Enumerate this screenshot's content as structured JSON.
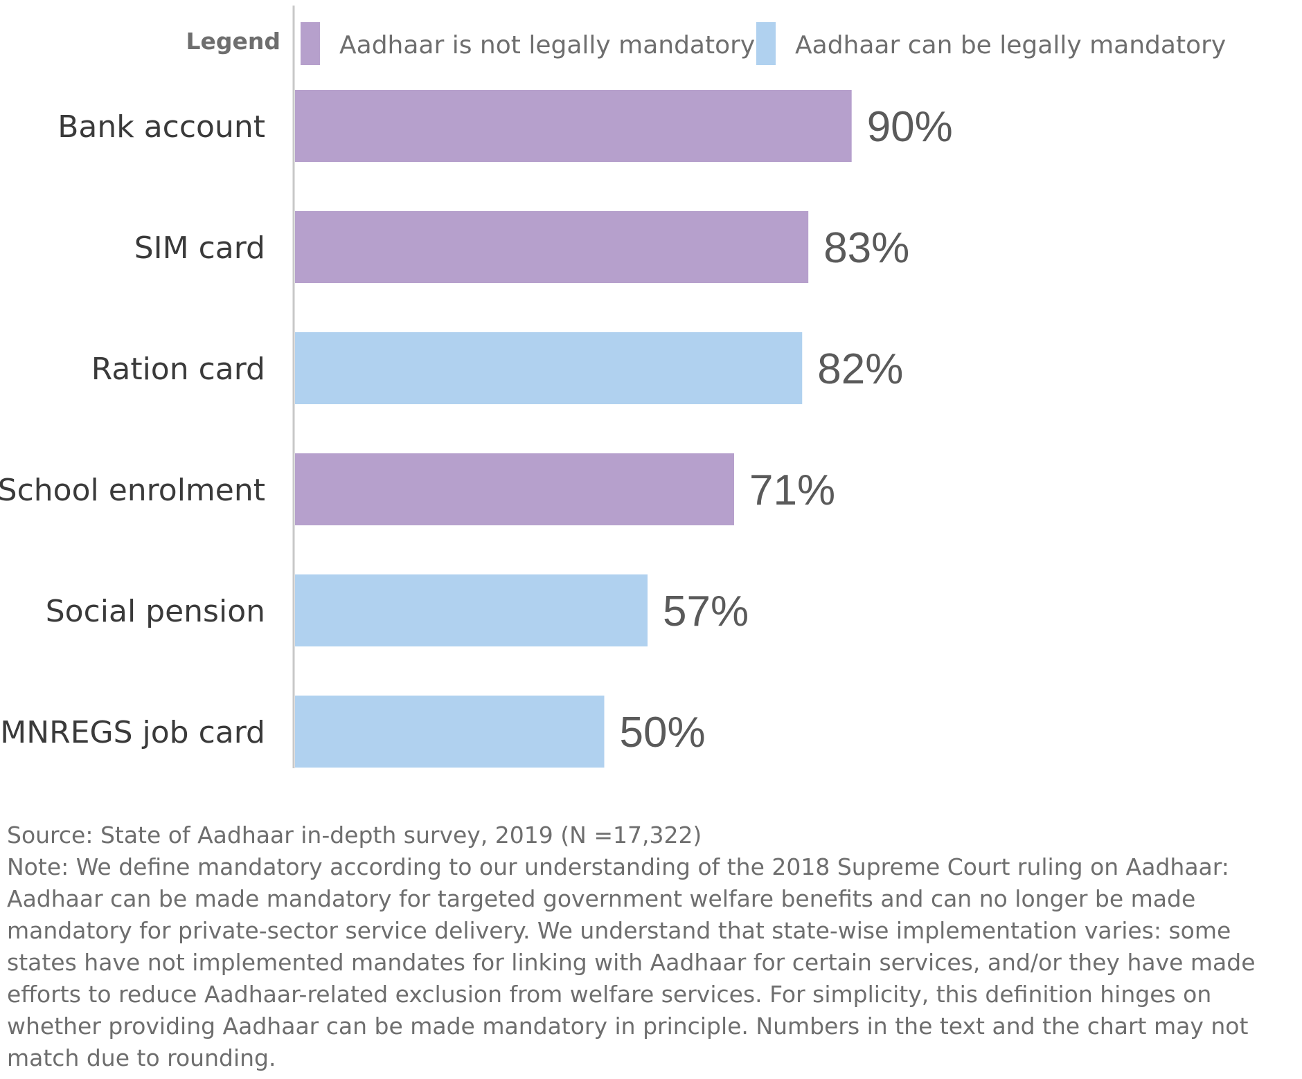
{
  "chart_data": {
    "type": "bar",
    "orientation": "horizontal",
    "categories": [
      "Bank account",
      "SIM card",
      "Ration card",
      "School enrolment",
      "Social pension",
      "MNREGS job card"
    ],
    "values": [
      90,
      83,
      82,
      71,
      57,
      50
    ],
    "value_labels": [
      "90%",
      "83%",
      "82%",
      "71%",
      "57%",
      "50%"
    ],
    "bar_groups": [
      "not_mandatory",
      "not_mandatory",
      "mandatory",
      "not_mandatory",
      "mandatory",
      "mandatory"
    ],
    "xlim": [
      0,
      100
    ],
    "grid": false,
    "legend": {
      "title": "Legend",
      "placement": "top",
      "entries": [
        {
          "key": "not_mandatory",
          "label": "Aadhaar is not legally mandatory",
          "color": "#b6a0cc"
        },
        {
          "key": "mandatory",
          "label": "Aadhaar can be legally mandatory",
          "color": "#b0d1ef"
        }
      ]
    }
  },
  "notes": {
    "source": "Source: State of Aadhaar in-depth survey, 2019 (N =17,322)",
    "note": "Note: We define mandatory according to our understanding of the 2018 Supreme Court ruling on Aadhaar: Aadhaar can be made mandatory for targeted government welfare benefits and can no longer be made mandatory for private-sector service delivery. We understand that state-wise implementation varies: some states have not implemented mandates for linking with Aadhaar for certain services, and/or they have made efforts to reduce Aadhaar-related exclusion from welfare services. For simplicity, this definition hinges on whether providing Aadhaar can be made mandatory in principle. Numbers in the text and the chart may not match due to rounding."
  },
  "colors": {
    "axis_line": "#c8c8c8"
  }
}
